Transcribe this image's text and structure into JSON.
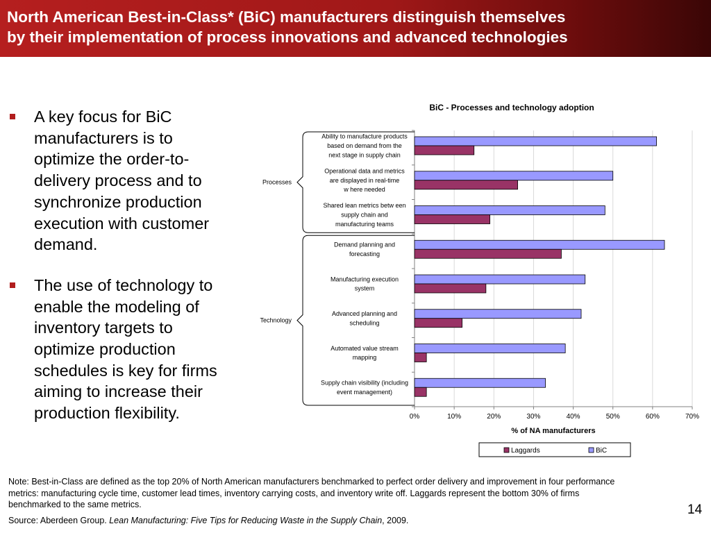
{
  "slide": {
    "title_lines": [
      "North American Best-in-Class* (BiC) manufacturers distinguish themselves",
      "by their implementation of process innovations and advanced technologies"
    ],
    "bullets": [
      [
        "A key focus for BiC",
        "manufacturers is to",
        "optimize the order-to-",
        "delivery process and to",
        "synchronize production",
        "execution with customer",
        "demand."
      ],
      [
        "The use of technology to",
        "enable the modeling of",
        "inventory targets to",
        "optimize production",
        "schedules is key for firms",
        "aiming to increase their",
        "production flexibility."
      ]
    ],
    "footer_note_lines": [
      "Note: Best-in-Class are defined as the top 20% of North American manufacturers benchmarked to perfect order delivery and improvement in four performance",
      "metrics: manufacturing cycle time, customer lead times, inventory carrying costs, and inventory write off. Laggards represent the bottom 30% of firms",
      "benchmarked to the same metrics."
    ],
    "source_prefix": "Source: Aberdeen Group. ",
    "source_title": "Lean Manufacturing: Five Tips for Reducing Waste in the Supply Chain",
    "source_suffix": ", 2009.",
    "page_number": "14"
  },
  "chart_data": {
    "type": "bar",
    "orientation": "horizontal",
    "title": "BiC - Processes and technology adoption",
    "xlabel": "% of NA manufacturers",
    "xlim": [
      0,
      70
    ],
    "xticks": [
      "0%",
      "10%",
      "20%",
      "30%",
      "40%",
      "50%",
      "60%",
      "70%"
    ],
    "groups": [
      {
        "label": "Processes",
        "start": 0,
        "end": 2
      },
      {
        "label": "Technology",
        "start": 3,
        "end": 7
      }
    ],
    "categories": [
      [
        "Ability to manufacture products",
        "based on demand from the",
        "next stage in supply chain"
      ],
      [
        "Operational data and metrics",
        "are displayed in real-time",
        "w here needed"
      ],
      [
        "Shared lean metrics betw een",
        "supply chain and",
        "manufacturing teams"
      ],
      [
        "Demand planning and",
        "forecasting"
      ],
      [
        "Manufacturing execution",
        "system"
      ],
      [
        "Advanced planning and",
        "scheduling"
      ],
      [
        "Automated value stream",
        "mapping"
      ],
      [
        "Supply chain visibility (including",
        "event management)"
      ]
    ],
    "series": [
      {
        "name": "BiC",
        "color": "#9999ff",
        "values": [
          61,
          50,
          48,
          63,
          43,
          42,
          38,
          33
        ]
      },
      {
        "name": "Laggards",
        "color": "#993366",
        "values": [
          15,
          26,
          19,
          37,
          18,
          12,
          3,
          3
        ]
      }
    ],
    "legend": {
      "position": "bottom",
      "order": [
        "Laggards",
        "BiC"
      ]
    }
  }
}
